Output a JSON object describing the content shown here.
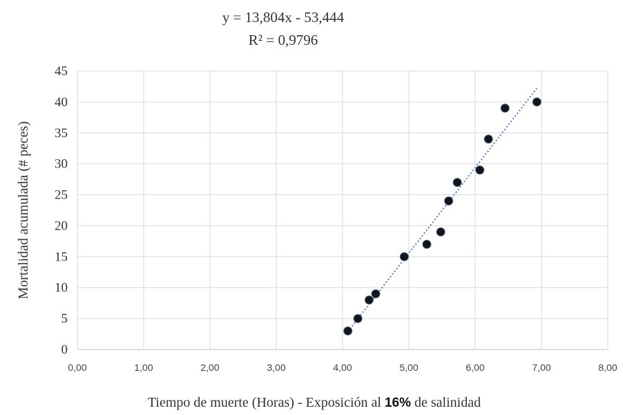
{
  "chart_data": {
    "type": "scatter",
    "equation": "y = 13,804x - 53,444",
    "r_squared": "R² = 0,9796",
    "xlabel_prefix": "Tiempo de muerte (Horas) - Exposición al ",
    "xlabel_bold": "16%",
    "xlabel_suffix": " de salinidad",
    "ylabel": "Mortalidad acumulada (# peces)",
    "xlim": [
      0,
      8
    ],
    "ylim": [
      0,
      45
    ],
    "x_ticks": [
      "0,00",
      "1,00",
      "2,00",
      "3,00",
      "4,00",
      "5,00",
      "6,00",
      "7,00",
      "8,00"
    ],
    "y_ticks": [
      "0",
      "5",
      "10",
      "15",
      "20",
      "25",
      "30",
      "35",
      "40",
      "45"
    ],
    "grid": true,
    "trendline": {
      "type": "linear",
      "slope": 13.804,
      "intercept": -53.444,
      "style": "dotted",
      "color": "#4a7fc1"
    },
    "marker_color": "#0f1620",
    "points": [
      {
        "x": 4.08,
        "y": 3
      },
      {
        "x": 4.23,
        "y": 5
      },
      {
        "x": 4.4,
        "y": 8
      },
      {
        "x": 4.5,
        "y": 9
      },
      {
        "x": 4.93,
        "y": 15
      },
      {
        "x": 5.27,
        "y": 17
      },
      {
        "x": 5.48,
        "y": 19
      },
      {
        "x": 5.6,
        "y": 24
      },
      {
        "x": 5.73,
        "y": 27
      },
      {
        "x": 6.07,
        "y": 29
      },
      {
        "x": 6.2,
        "y": 34
      },
      {
        "x": 6.45,
        "y": 39
      },
      {
        "x": 6.93,
        "y": 40
      }
    ]
  }
}
